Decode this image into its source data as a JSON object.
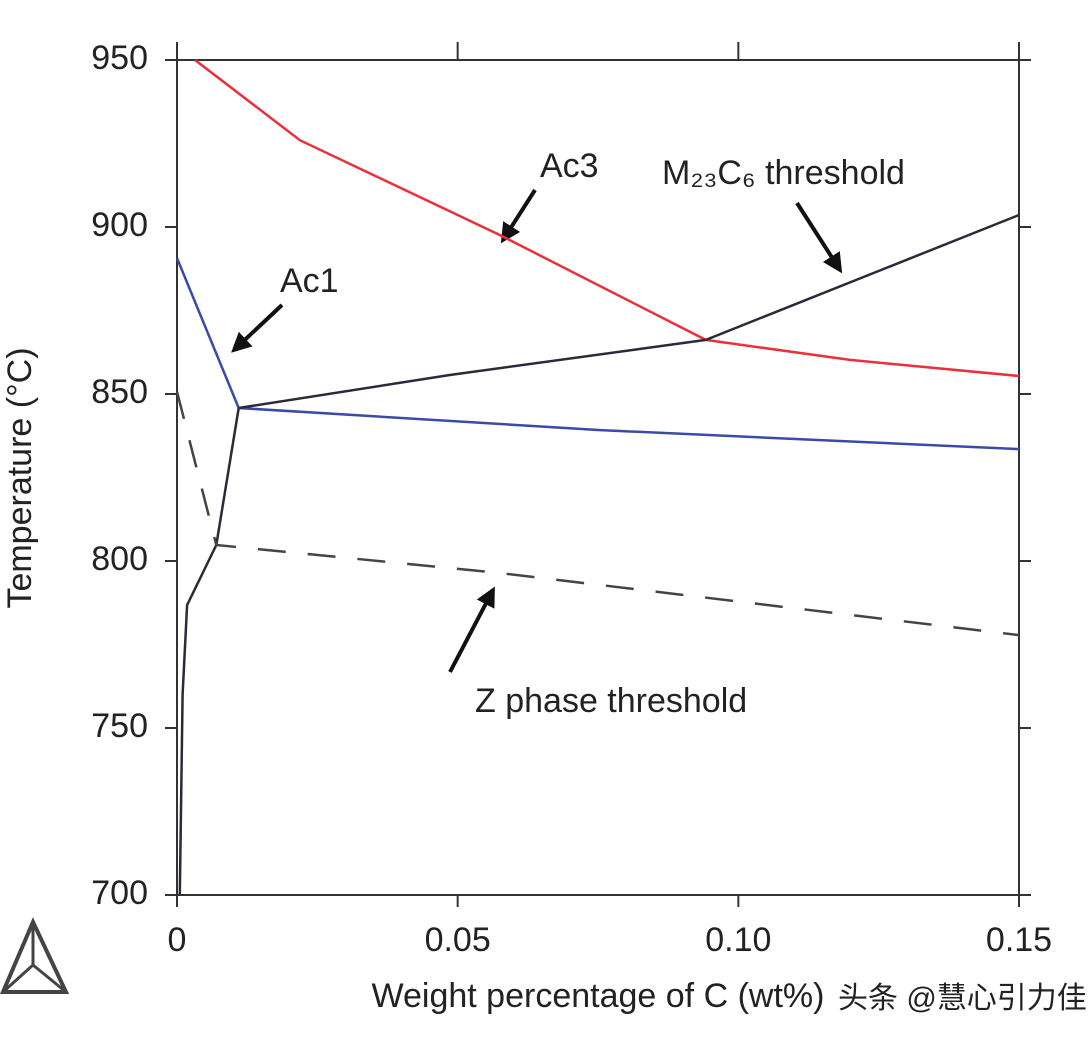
{
  "chart_data": {
    "type": "line",
    "xlabel": "Weight percentage of C (wt%)",
    "ylabel": "Temperature (°C)",
    "xlim": [
      0,
      0.15
    ],
    "ylim": [
      700,
      950
    ],
    "xticks": [
      0,
      0.05,
      {
        "value": 0.1,
        "label": "0.10"
      },
      0.15
    ],
    "yticks": [
      700,
      750,
      800,
      850,
      900,
      950
    ],
    "series": [
      {
        "name": "Ac3",
        "color": "#e8313a",
        "linestyle": "solid",
        "x": [
          0.0032,
          0.0219,
          0.0575,
          0.0942,
          0.1199,
          0.15
        ],
        "values": [
          950,
          926,
          897.6,
          866.2,
          860.2,
          855.4
        ]
      },
      {
        "name": "Ac1",
        "color": "#3a4aa8",
        "linestyle": "solid",
        "x": [
          0,
          0.011,
          0.0754,
          0.15
        ],
        "values": [
          890.7,
          845.8,
          839.2,
          833.5
        ]
      },
      {
        "name": "M₂₃C₆ threshold",
        "color": "#2a2a3a",
        "linestyle": "solid",
        "x": [
          0.011,
          0.0486,
          0.0942,
          0.15
        ],
        "values": [
          845.8,
          855.7,
          866.2,
          903.6
        ]
      },
      {
        "color": "#2a2a3a",
        "linestyle": "solid",
        "x": [
          0.011,
          0.007,
          0.0018,
          0.001,
          0.0005
        ],
        "values": [
          845.8,
          804.8,
          786.8,
          760,
          700
        ]
      },
      {
        "name": "Z phase threshold",
        "color": "#444444",
        "linestyle": "dashed",
        "x": [
          0,
          0.007,
          0.0575,
          0.15
        ],
        "values": [
          850.7,
          804.8,
          796.4,
          777.8
        ]
      }
    ],
    "watermark": "头条 @慧心引力佳"
  }
}
